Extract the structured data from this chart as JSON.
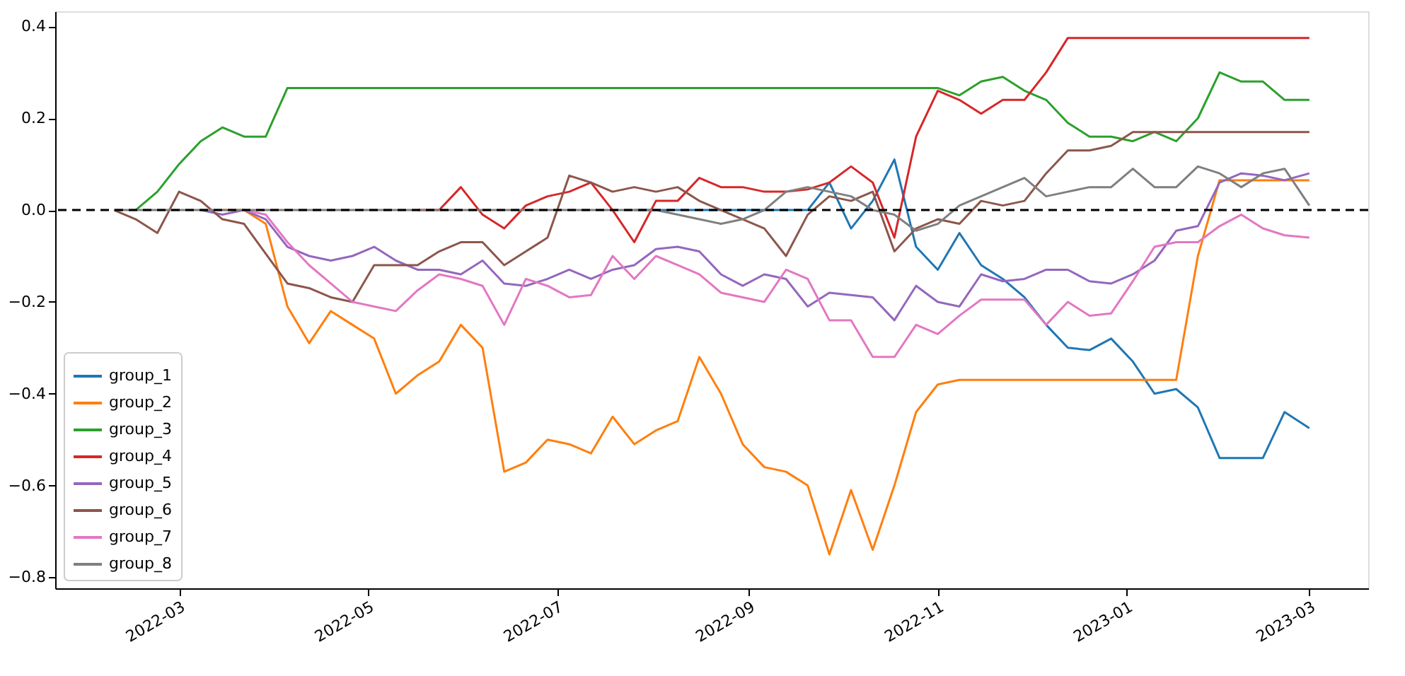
{
  "chart_data": {
    "type": "line",
    "x": [
      "2022-02-08",
      "2022-02-15",
      "2022-02-22",
      "2022-03-01",
      "2022-03-08",
      "2022-03-15",
      "2022-03-22",
      "2022-03-29",
      "2022-04-05",
      "2022-04-12",
      "2022-04-19",
      "2022-04-26",
      "2022-05-03",
      "2022-05-10",
      "2022-05-17",
      "2022-05-24",
      "2022-05-31",
      "2022-06-07",
      "2022-06-14",
      "2022-06-21",
      "2022-06-28",
      "2022-07-05",
      "2022-07-12",
      "2022-07-19",
      "2022-07-26",
      "2022-08-02",
      "2022-08-09",
      "2022-08-16",
      "2022-08-23",
      "2022-08-30",
      "2022-09-06",
      "2022-09-13",
      "2022-09-20",
      "2022-09-27",
      "2022-10-04",
      "2022-10-11",
      "2022-10-18",
      "2022-10-25",
      "2022-11-01",
      "2022-11-08",
      "2022-11-15",
      "2022-11-22",
      "2022-11-29",
      "2022-12-06",
      "2022-12-13",
      "2022-12-20",
      "2022-12-27",
      "2023-01-03",
      "2023-01-10",
      "2023-01-17",
      "2023-01-24",
      "2023-01-31",
      "2023-02-07",
      "2023-02-14",
      "2023-02-21",
      "2023-03-01"
    ],
    "series": [
      {
        "name": "group_1",
        "color": "#1f77b4",
        "values": [
          null,
          null,
          null,
          null,
          null,
          null,
          null,
          null,
          null,
          null,
          null,
          null,
          null,
          null,
          null,
          null,
          null,
          null,
          null,
          null,
          null,
          null,
          null,
          null,
          0,
          0,
          0,
          0,
          0,
          0,
          0,
          0,
          0,
          0.06,
          -0.04,
          0.02,
          0.11,
          -0.08,
          -0.13,
          -0.05,
          -0.12,
          -0.15,
          -0.19,
          -0.25,
          -0.3,
          -0.305,
          -0.28,
          -0.33,
          -0.4,
          -0.39,
          -0.43,
          -0.54,
          -0.54,
          -0.54,
          -0.44,
          -0.475
        ]
      },
      {
        "name": "group_2",
        "color": "#ff7f0e",
        "values": [
          null,
          null,
          null,
          null,
          null,
          0,
          0,
          -0.03,
          -0.21,
          -0.29,
          -0.22,
          -0.25,
          -0.28,
          -0.4,
          -0.36,
          -0.33,
          -0.25,
          -0.3,
          -0.57,
          -0.55,
          -0.5,
          -0.51,
          -0.53,
          -0.45,
          -0.51,
          -0.48,
          -0.46,
          -0.32,
          -0.4,
          -0.51,
          -0.56,
          -0.57,
          -0.6,
          -0.75,
          -0.61,
          -0.74,
          -0.6,
          -0.44,
          -0.38,
          -0.37,
          -0.37,
          -0.37,
          -0.37,
          -0.37,
          -0.37,
          -0.37,
          -0.37,
          -0.37,
          -0.37,
          -0.37,
          -0.1,
          0.065,
          0.065,
          0.065,
          0.065,
          0.065
        ]
      },
      {
        "name": "group_3",
        "color": "#2ca02c",
        "values": [
          null,
          0,
          0.04,
          0.1,
          0.15,
          0.18,
          0.16,
          0.16,
          0.266,
          0.266,
          0.266,
          0.266,
          0.266,
          0.266,
          0.266,
          0.266,
          0.266,
          0.266,
          0.266,
          0.266,
          0.266,
          0.266,
          0.266,
          0.266,
          0.266,
          0.266,
          0.266,
          0.266,
          0.266,
          0.266,
          0.266,
          0.266,
          0.266,
          0.266,
          0.266,
          0.266,
          0.266,
          0.266,
          0.266,
          0.25,
          0.28,
          0.29,
          0.26,
          0.24,
          0.19,
          0.16,
          0.16,
          0.15,
          0.17,
          0.15,
          0.2,
          0.3,
          0.28,
          0.28,
          0.24,
          0.24
        ]
      },
      {
        "name": "group_4",
        "color": "#d62728",
        "values": [
          null,
          null,
          null,
          null,
          null,
          null,
          null,
          null,
          null,
          null,
          null,
          null,
          null,
          null,
          0,
          0,
          0.05,
          -0.01,
          -0.04,
          0.01,
          0.03,
          0.04,
          0.06,
          0,
          -0.07,
          0.02,
          0.02,
          0.07,
          0.05,
          0.05,
          0.04,
          0.04,
          0.045,
          0.06,
          0.095,
          0.06,
          -0.06,
          0.16,
          0.26,
          0.24,
          0.21,
          0.24,
          0.24,
          0.3,
          0.375,
          0.375,
          0.375,
          0.375,
          0.375,
          0.375,
          0.375,
          0.375,
          0.375,
          0.375,
          0.375,
          0.375
        ]
      },
      {
        "name": "group_5",
        "color": "#9467bd",
        "values": [
          null,
          null,
          null,
          null,
          0,
          -0.01,
          0,
          -0.02,
          -0.08,
          -0.1,
          -0.11,
          -0.1,
          -0.08,
          -0.11,
          -0.13,
          -0.13,
          -0.14,
          -0.11,
          -0.16,
          -0.165,
          -0.15,
          -0.13,
          -0.15,
          -0.13,
          -0.12,
          -0.085,
          -0.08,
          -0.09,
          -0.14,
          -0.165,
          -0.14,
          -0.15,
          -0.21,
          -0.18,
          -0.185,
          -0.19,
          -0.24,
          -0.165,
          -0.2,
          -0.21,
          -0.14,
          -0.155,
          -0.15,
          -0.13,
          -0.13,
          -0.155,
          -0.16,
          -0.14,
          -0.11,
          -0.045,
          -0.035,
          0.06,
          0.08,
          0.075,
          0.065,
          0.08
        ]
      },
      {
        "name": "group_6",
        "color": "#8c564b",
        "values": [
          0,
          -0.02,
          -0.05,
          0.04,
          0.02,
          -0.02,
          -0.03,
          -0.095,
          -0.16,
          -0.17,
          -0.19,
          -0.2,
          -0.12,
          -0.12,
          -0.12,
          -0.09,
          -0.07,
          -0.07,
          -0.12,
          -0.09,
          -0.06,
          0.075,
          0.06,
          0.04,
          0.05,
          0.04,
          0.05,
          0.02,
          0,
          -0.02,
          -0.04,
          -0.1,
          -0.01,
          0.03,
          0.02,
          0.04,
          -0.09,
          -0.04,
          -0.02,
          -0.03,
          0.02,
          0.01,
          0.02,
          0.08,
          0.13,
          0.13,
          0.14,
          0.17,
          0.17,
          0.17,
          0.17,
          0.17,
          0.17,
          0.17,
          0.17,
          0.17
        ]
      },
      {
        "name": "group_7",
        "color": "#e377c2",
        "values": [
          null,
          null,
          null,
          null,
          null,
          null,
          0,
          -0.01,
          -0.07,
          -0.12,
          -0.16,
          -0.2,
          -0.21,
          -0.22,
          -0.175,
          -0.14,
          -0.15,
          -0.165,
          -0.25,
          -0.15,
          -0.165,
          -0.19,
          -0.185,
          -0.1,
          -0.15,
          -0.1,
          -0.12,
          -0.14,
          -0.18,
          -0.19,
          -0.2,
          -0.13,
          -0.15,
          -0.24,
          -0.24,
          -0.32,
          -0.32,
          -0.25,
          -0.27,
          -0.23,
          -0.195,
          -0.195,
          -0.195,
          -0.25,
          -0.2,
          -0.23,
          -0.225,
          -0.155,
          -0.08,
          -0.07,
          -0.07,
          -0.035,
          -0.01,
          -0.04,
          -0.055,
          -0.06
        ]
      },
      {
        "name": "group_8",
        "color": "#7f7f7f",
        "values": [
          0,
          0,
          0,
          0,
          0,
          0,
          0,
          0,
          0,
          0,
          0,
          0,
          0,
          0,
          0,
          0,
          0,
          0,
          0,
          0,
          0,
          0,
          0,
          0,
          0,
          0,
          -0.01,
          -0.02,
          -0.03,
          -0.02,
          0,
          0.04,
          0.05,
          0.04,
          0.03,
          0,
          -0.01,
          -0.045,
          -0.03,
          0.01,
          0.03,
          0.05,
          0.07,
          0.03,
          0.04,
          0.05,
          0.05,
          0.09,
          0.05,
          0.05,
          0.095,
          0.08,
          0.05,
          0.08,
          0.09,
          0.01
        ]
      }
    ],
    "xlim": [
      "2022-01-20",
      "2023-03-20"
    ],
    "xticks": [
      "2022-03",
      "2022-05",
      "2022-07",
      "2022-09",
      "2022-11",
      "2023-01",
      "2023-03"
    ],
    "ylim": [
      -0.824,
      0.433
    ],
    "yticks": [
      {
        "value": -0.8,
        "label": "−0.8"
      },
      {
        "value": -0.6,
        "label": "−0.6"
      },
      {
        "value": -0.4,
        "label": "−0.4"
      },
      {
        "value": -0.2,
        "label": "−0.2"
      },
      {
        "value": 0,
        "label": "0.0"
      },
      {
        "value": 0.2,
        "label": "0.2"
      },
      {
        "value": 0.4,
        "label": "0.4"
      }
    ],
    "ref_lines": [
      {
        "axis": "y",
        "value": 0,
        "color": "#000000",
        "line_style": "dashed"
      }
    ],
    "legend": "bottom left",
    "grid": false,
    "line_style": "solid"
  }
}
